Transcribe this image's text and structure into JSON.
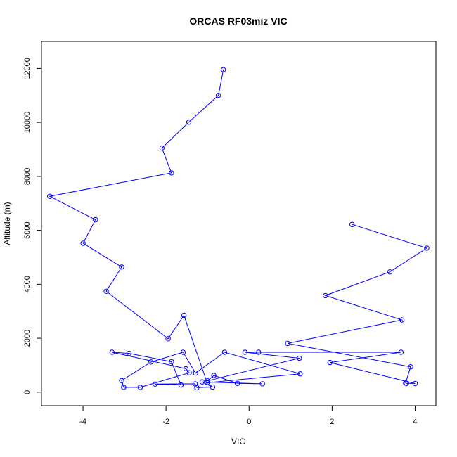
{
  "chart_data": {
    "type": "line",
    "title": "ORCAS RF03miz VIC",
    "xlabel": "VIC",
    "ylabel": "Altitude (m)",
    "xlim": [
      -5.0,
      4.5
    ],
    "ylim": [
      -500,
      13000
    ],
    "xticks": [
      -4,
      -2,
      0,
      2,
      4
    ],
    "yticks": [
      0,
      2000,
      4000,
      6000,
      8000,
      10000,
      12000
    ],
    "grid": false,
    "legend": "none",
    "series_color": "#0000ff",
    "marker": "open-circle",
    "series": [
      {
        "points": [
          {
            "x": 2.48,
            "y": 6220
          },
          {
            "x": 4.28,
            "y": 5340
          },
          {
            "x": 3.39,
            "y": 4460
          },
          {
            "x": 1.84,
            "y": 3580
          },
          {
            "x": 3.68,
            "y": 2680
          },
          {
            "x": 0.93,
            "y": 1810
          },
          {
            "x": 3.89,
            "y": 940
          },
          {
            "x": 3.77,
            "y": 340
          },
          {
            "x": 3.79,
            "y": 330
          },
          {
            "x": 4.0,
            "y": 320
          },
          {
            "x": 1.95,
            "y": 1100
          },
          {
            "x": 3.66,
            "y": 1480
          },
          {
            "x": 0.23,
            "y": 1480
          },
          {
            "x": -0.1,
            "y": 1480
          },
          {
            "x": 1.21,
            "y": 1260
          },
          {
            "x": -1.0,
            "y": 420
          },
          {
            "x": -0.85,
            "y": 620
          },
          {
            "x": -0.28,
            "y": 330
          },
          {
            "x": 0.32,
            "y": 310
          },
          {
            "x": -1.13,
            "y": 380
          },
          {
            "x": -0.88,
            "y": 190
          },
          {
            "x": -1.26,
            "y": 170
          },
          {
            "x": -1.3,
            "y": 310
          },
          {
            "x": -2.26,
            "y": 300
          },
          {
            "x": -1.64,
            "y": 270
          },
          {
            "x": -1.87,
            "y": 1130
          },
          {
            "x": -2.89,
            "y": 1440
          },
          {
            "x": -3.3,
            "y": 1480
          },
          {
            "x": -1.52,
            "y": 870
          },
          {
            "x": -1.44,
            "y": 720
          },
          {
            "x": -2.62,
            "y": 180
          },
          {
            "x": -3.02,
            "y": 180
          },
          {
            "x": -3.07,
            "y": 430
          },
          {
            "x": -2.36,
            "y": 1120
          },
          {
            "x": -1.59,
            "y": 1480
          },
          {
            "x": -1.29,
            "y": 710
          },
          {
            "x": -0.59,
            "y": 1480
          },
          {
            "x": 1.23,
            "y": 680
          },
          {
            "x": -1.01,
            "y": 350
          },
          {
            "x": -1.57,
            "y": 2850
          },
          {
            "x": -1.95,
            "y": 1980
          },
          {
            "x": -3.44,
            "y": 3740
          },
          {
            "x": -3.07,
            "y": 4640
          },
          {
            "x": -4.0,
            "y": 5520
          },
          {
            "x": -3.7,
            "y": 6390
          },
          {
            "x": -4.8,
            "y": 7260
          },
          {
            "x": -1.87,
            "y": 8130
          },
          {
            "x": -2.1,
            "y": 9050
          },
          {
            "x": -1.45,
            "y": 10010
          },
          {
            "x": -0.74,
            "y": 11000
          },
          {
            "x": -0.62,
            "y": 11950
          }
        ]
      }
    ]
  }
}
